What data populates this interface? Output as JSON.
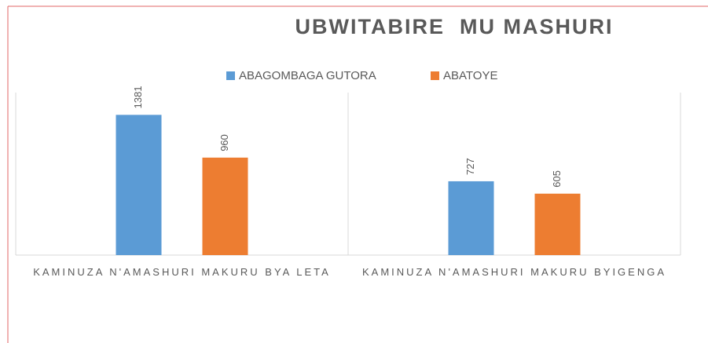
{
  "chart_data": {
    "type": "bar",
    "title": "UBWITABIRE  MU MASHURI",
    "categories": [
      "KAMINUZA N'AMASHURI MAKURU BYA LETA",
      "KAMINUZA N'AMASHURI MAKURU BYIGENGA"
    ],
    "series": [
      {
        "name": "ABAGOMBAGA GUTORA",
        "color": "#5b9bd5",
        "values": [
          1381,
          727
        ]
      },
      {
        "name": "ABATOYE",
        "color": "#ed7d31",
        "values": [
          960,
          605
        ]
      }
    ],
    "ylim": [
      0,
      1600
    ],
    "legend": "top"
  }
}
